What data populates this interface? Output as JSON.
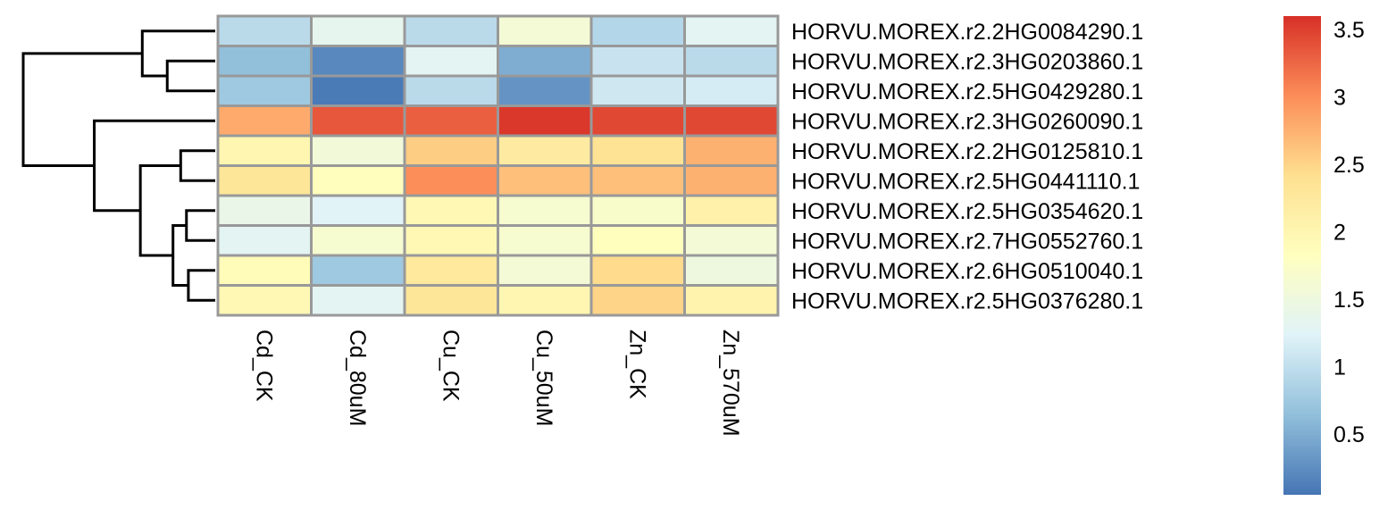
{
  "chart_data": {
    "type": "heatmap",
    "title": "",
    "xlabel": "",
    "ylabel": "",
    "columns": [
      "Cd_CK",
      "Cd_80uM",
      "Cu_CK",
      "Cu_50uM",
      "Zn_CK",
      "Zn_570uM"
    ],
    "rows": [
      "HORVU.MOREX.r2.2HG0084290.1",
      "HORVU.MOREX.r2.3HG0203860.1",
      "HORVU.MOREX.r2.5HG0429280.1",
      "HORVU.MOREX.r2.3HG0260090.1",
      "HORVU.MOREX.r2.2HG0125810.1",
      "HORVU.MOREX.r2.5HG0441110.1",
      "HORVU.MOREX.r2.5HG0354620.1",
      "HORVU.MOREX.r2.7HG0552760.1",
      "HORVU.MOREX.r2.6HG0510040.1",
      "HORVU.MOREX.r2.5HG0376280.1"
    ],
    "values": [
      [
        0.95,
        1.35,
        0.95,
        1.6,
        0.9,
        1.3
      ],
      [
        0.65,
        0.2,
        1.3,
        0.5,
        1.05,
        0.95
      ],
      [
        0.75,
        0.1,
        0.95,
        0.3,
        1.1,
        1.15
      ],
      [
        2.8,
        3.35,
        3.3,
        3.55,
        3.45,
        3.45
      ],
      [
        2.0,
        1.55,
        2.55,
        2.2,
        2.35,
        2.75
      ],
      [
        2.3,
        1.85,
        3.0,
        2.65,
        2.65,
        2.75
      ],
      [
        1.4,
        1.25,
        1.95,
        1.65,
        1.7,
        2.1
      ],
      [
        1.3,
        1.65,
        1.95,
        1.65,
        1.85,
        1.6
      ],
      [
        1.9,
        0.75,
        2.25,
        1.6,
        2.45,
        1.5
      ],
      [
        1.95,
        1.3,
        2.3,
        2.0,
        2.5,
        2.05
      ]
    ],
    "color_scale": {
      "min": 0.05,
      "max": 3.6,
      "colors": [
        "#4575b4",
        "#91bfdb",
        "#e0f3f8",
        "#ffffbf",
        "#fee090",
        "#fc8d59",
        "#d73027"
      ]
    },
    "colorbar_ticks": [
      0.5,
      1,
      1.5,
      2,
      2.5,
      3,
      3.5
    ],
    "colorbar_tick_labels": [
      "0.5",
      "1",
      "1.5",
      "2",
      "2.5",
      "3",
      "3.5"
    ],
    "cell_border_color": "#999999",
    "legend": "right",
    "row_dendrogram": {
      "position": "left",
      "merges": [
        [
          1,
          2,
          0.25
        ],
        [
          0,
          "n1",
          0.38
        ],
        [
          4,
          5,
          0.18
        ],
        [
          6,
          7,
          0.15
        ],
        [
          8,
          9,
          0.14
        ],
        [
          "n4",
          "n5",
          0.22
        ],
        [
          "n3",
          "n6",
          0.39
        ],
        [
          3,
          "n7",
          0.63
        ],
        [
          "n2",
          "n8",
          1.0
        ]
      ]
    }
  }
}
